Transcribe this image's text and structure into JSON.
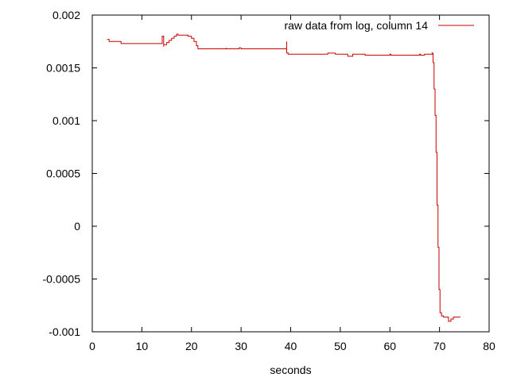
{
  "chart_data": {
    "type": "line",
    "title": "",
    "xlabel": "seconds",
    "ylabel": "",
    "xlim": [
      0,
      80
    ],
    "ylim": [
      -0.001,
      0.002
    ],
    "xticks": [
      0,
      10,
      20,
      30,
      40,
      50,
      60,
      70,
      80
    ],
    "xtick_labels": [
      "0",
      "10",
      "20",
      "30",
      "40",
      "50",
      "60",
      "70",
      "80"
    ],
    "yticks": [
      -0.001,
      -0.0005,
      0,
      0.0005,
      0.001,
      0.0015,
      0.002
    ],
    "ytick_labels": [
      "-0.001",
      "-0.0005",
      "0",
      "0.0005",
      "0.001",
      "0.0015",
      "0.002"
    ],
    "grid": false,
    "legend_position": "top-right",
    "series": [
      {
        "name": "raw data from log, column 14",
        "color": "#cc0000",
        "x": [
          3.0,
          3.4,
          5.8,
          5.8,
          14.0,
          14.1,
          14.4,
          14.4,
          15.0,
          15.5,
          16.0,
          16.5,
          17.0,
          17.0,
          17.3,
          17.3,
          19.2,
          19.3,
          20.0,
          20.5,
          21.0,
          21.3,
          26.8,
          27.0,
          27.0,
          29.5,
          29.6,
          30.0,
          30.0,
          39.1,
          39.2,
          39.2,
          39.5,
          39.5,
          40.0,
          47.5,
          47.5,
          49.0,
          49.0,
          51.5,
          51.5,
          52.5,
          52.5,
          55.0,
          55.0,
          60.0,
          60.2,
          66.0,
          66.2,
          67.0,
          67.0,
          68.3,
          68.5,
          68.7,
          68.9,
          69.1,
          69.3,
          69.5,
          69.7,
          69.9,
          70.1,
          70.4,
          70.8,
          71.3,
          71.8,
          72.3,
          72.8,
          74.2
        ],
        "y": [
          0.00177,
          0.00175,
          0.00175,
          0.00173,
          0.00173,
          0.0018,
          0.0017,
          0.00172,
          0.00174,
          0.00176,
          0.00178,
          0.0018,
          0.0018,
          0.00182,
          0.00182,
          0.00181,
          0.00181,
          0.0018,
          0.00178,
          0.00175,
          0.00171,
          0.00168,
          0.00168,
          0.00169,
          0.00168,
          0.00168,
          0.00169,
          0.00169,
          0.00168,
          0.00168,
          0.00175,
          0.00164,
          0.00164,
          0.00163,
          0.00163,
          0.00163,
          0.00164,
          0.00164,
          0.00163,
          0.00163,
          0.00161,
          0.00162,
          0.00163,
          0.00163,
          0.00162,
          0.00163,
          0.00162,
          0.00163,
          0.00162,
          0.00162,
          0.00163,
          0.00163,
          0.00164,
          0.00155,
          0.0013,
          0.00105,
          0.0007,
          0.0002,
          -0.0002,
          -0.0006,
          -0.00082,
          -0.00085,
          -0.00086,
          -0.00086,
          -0.0009,
          -0.00088,
          -0.00086,
          -0.00086
        ]
      }
    ]
  }
}
